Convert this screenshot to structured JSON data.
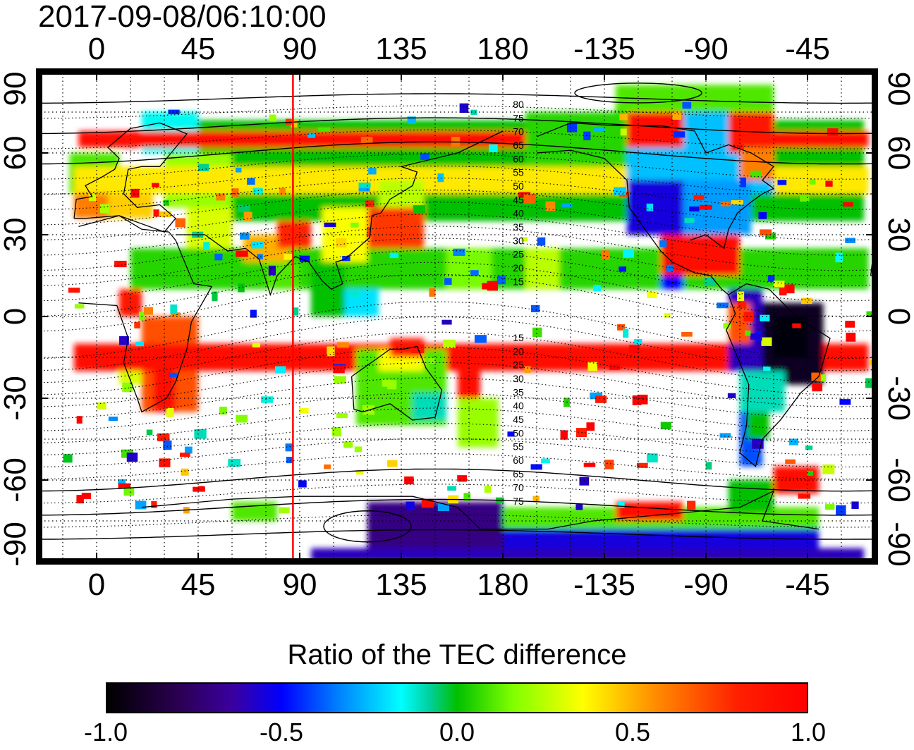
{
  "timestamp": "2017-09-08/06:10:00",
  "top_lon_ticks": [
    "0",
    "45",
    "90",
    "135",
    "180",
    "-135",
    "-90",
    "-45"
  ],
  "bottom_lon_ticks": [
    "0",
    "45",
    "90",
    "135",
    "180",
    "-135",
    "-90",
    "-45"
  ],
  "left_lat_ticks": [
    "90",
    "60",
    "30",
    "0",
    "-30",
    "-60",
    "-90"
  ],
  "right_lat_ticks": [
    "90",
    "60",
    "30",
    "0",
    "-30",
    "-60",
    "-90"
  ],
  "contour_labels_north": [
    "80",
    "75",
    "70",
    "65",
    "60",
    "55",
    "50",
    "45",
    "40",
    "35",
    "30",
    "25",
    "20",
    "15"
  ],
  "contour_labels_south": [
    "15",
    "20",
    "25",
    "30",
    "35",
    "40",
    "45",
    "50",
    "55",
    "60",
    "65",
    "70",
    "75"
  ],
  "colorbar": {
    "title": "Ratio of the TEC difference",
    "ticks": [
      "-1.0",
      "-0.5",
      "0.0",
      "0.5",
      "1.0"
    ],
    "min": -1.0,
    "max": 1.0
  },
  "terminator_longitude": 87,
  "colors": {
    "terminator": "#ff0000",
    "negative_strong": "#2a0050",
    "positive_strong": "#ff0000",
    "neutral": "#00c000"
  }
}
